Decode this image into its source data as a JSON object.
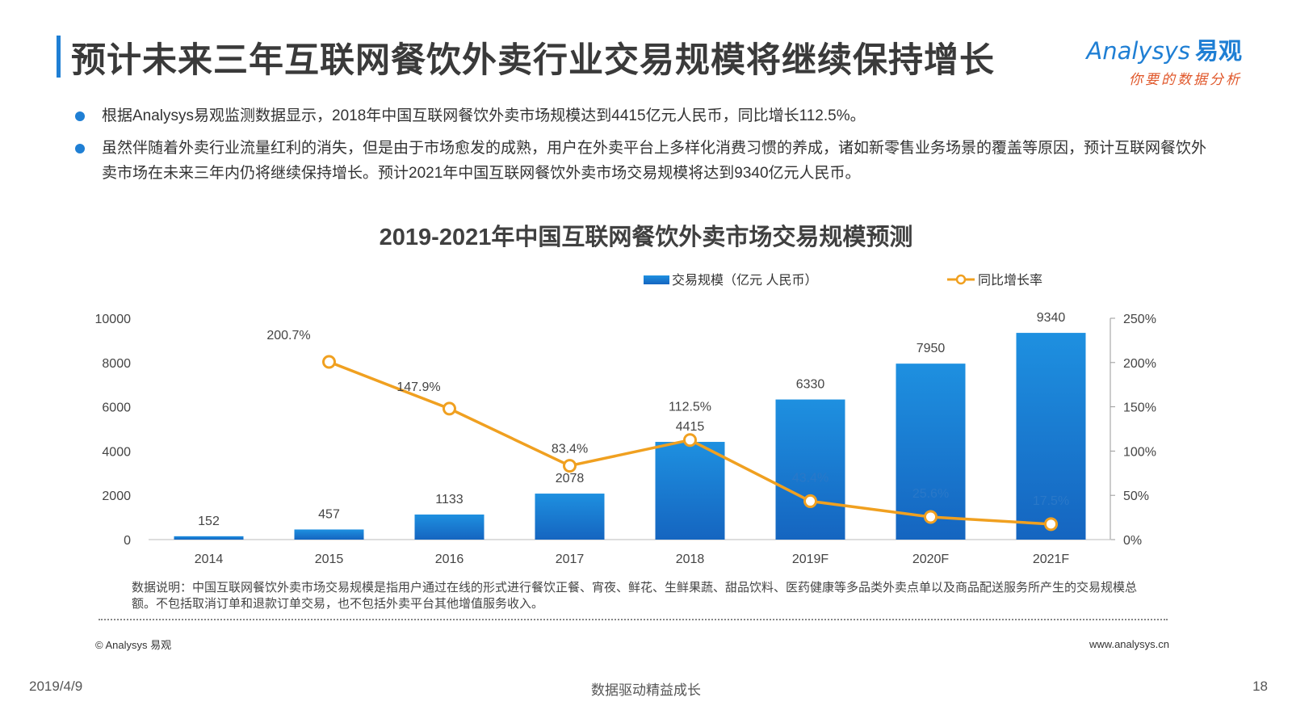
{
  "page": {
    "title": "预计未来三年互联网餐饮外卖行业交易规模将继续保持增长",
    "logo_en": "Analysys",
    "logo_cn": "易观",
    "logo_tagline": "你要的数据分析",
    "bullets": [
      "根据Analysys易观监测数据显示，2018年中国互联网餐饮外卖市场规模达到4415亿元人民币，同比增长112.5%。",
      "虽然伴随着外卖行业流量红利的消失，但是由于市场愈发的成熟，用户在外卖平台上多样化消费习惯的养成，诸如新零售业务场景的覆盖等原因，预计互联网餐饮外卖市场在未来三年内仍将继续保持增长。预计2021年中国互联网餐饮外卖市场交易规模将达到9340亿元人民币。"
    ],
    "note": "数据说明：中国互联网餐饮外卖市场交易规模是指用户通过在线的形式进行餐饮正餐、宵夜、鲜花、生鲜果蔬、甜品饮料、医药健康等多品类外卖点单以及商品配送服务所产生的交易规模总额。不包括取消订单和退款订单交易，也不包括外卖平台其他增值服务收入。",
    "copyright": "© Analysys 易观",
    "website": "www.analysys.cn",
    "footer_date": "2019/4/9",
    "footer_center": "数据驱动精益成长",
    "page_number": "18"
  },
  "chart_data": {
    "type": "bar",
    "title": "2019-2021年中国互联网餐饮外卖市场交易规模预测",
    "categories": [
      "2014",
      "2015",
      "2016",
      "2017",
      "2018",
      "2019F",
      "2020F",
      "2021F"
    ],
    "series": [
      {
        "name": "交易规模（亿元 人民币）",
        "type": "bar",
        "axis": "left",
        "values": [
          152,
          457,
          1133,
          2078,
          4415,
          6330,
          7950,
          9340
        ],
        "labels": [
          "152",
          "457",
          "1133",
          "2078",
          "4415",
          "6330",
          "7950",
          "9340"
        ]
      },
      {
        "name": "同比增长率",
        "type": "line",
        "axis": "right",
        "values": [
          null,
          200.7,
          147.9,
          83.4,
          112.5,
          43.4,
          25.6,
          17.5
        ],
        "labels": [
          "",
          "200.7%",
          "147.9%",
          "83.4%",
          "112.5%",
          "43.4%",
          "25.6%",
          "17.5%"
        ]
      }
    ],
    "y_left": {
      "min": 0,
      "max": 10000,
      "ticks": [
        "0",
        "2000",
        "4000",
        "6000",
        "8000",
        "10000"
      ]
    },
    "y_right": {
      "min": 0,
      "max": 250,
      "ticks": [
        "0%",
        "50%",
        "100%",
        "150%",
        "200%",
        "250%"
      ]
    },
    "legend_position": "top-right",
    "grid": false,
    "colors": {
      "bar_top": "#1e90e0",
      "bar_bottom": "#1565c0",
      "line": "#f0a020",
      "point_fill": "#ffffff"
    }
  }
}
